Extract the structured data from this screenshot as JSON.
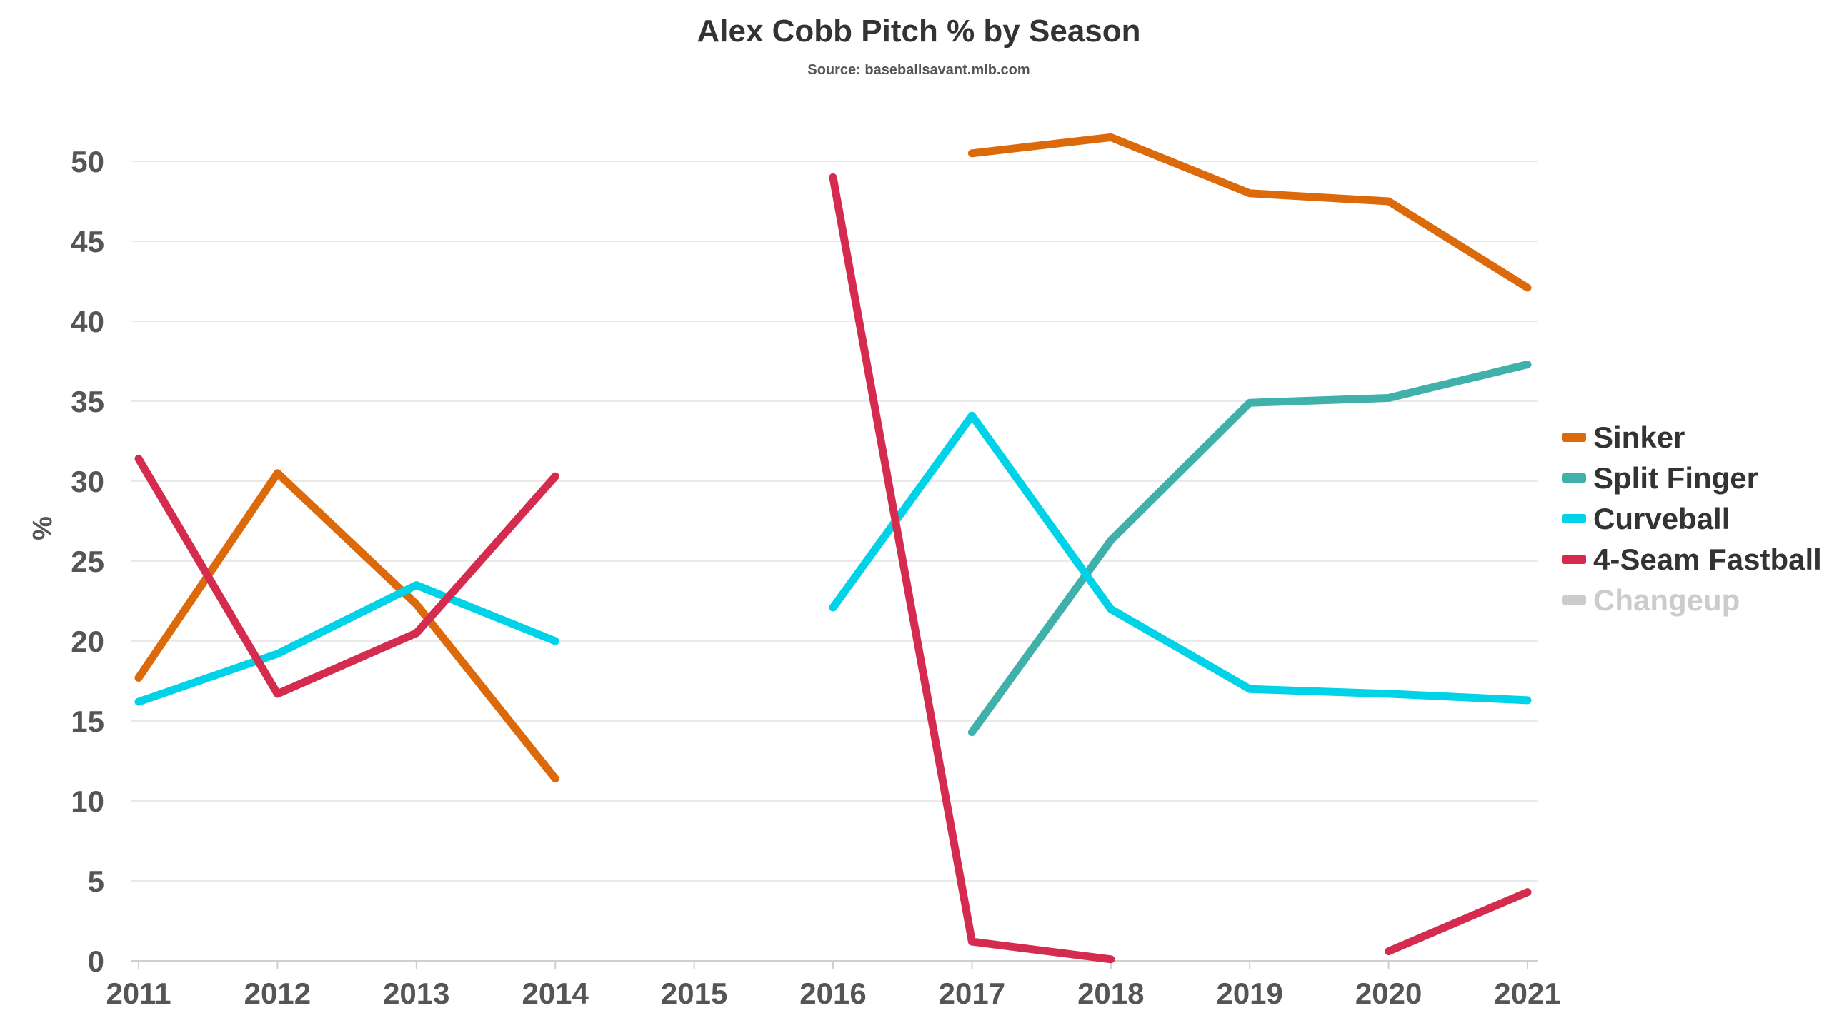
{
  "chart_data": {
    "type": "line",
    "title": "Alex Cobb Pitch % by Season",
    "subtitle": "Source: baseballsavant.mlb.com",
    "xlabel": "",
    "ylabel": "%",
    "x": [
      2011,
      2012,
      2013,
      2014,
      2015,
      2016,
      2017,
      2018,
      2019,
      2020,
      2021
    ],
    "x_ticks": [
      "2011",
      "2012",
      "2013",
      "2014",
      "2015",
      "2016",
      "2017",
      "2018",
      "2019",
      "2020",
      "2021"
    ],
    "ylim": [
      0,
      50
    ],
    "y_ticks": [
      "0",
      "5",
      "10",
      "15",
      "20",
      "25",
      "30",
      "35",
      "40",
      "45",
      "50"
    ],
    "grid": true,
    "legend_position": "right",
    "series": [
      {
        "name": "Sinker",
        "color": "#dd6a0a",
        "values": [
          17.7,
          30.5,
          22.3,
          11.4,
          null,
          null,
          50.5,
          51.5,
          48.0,
          47.5,
          42.1
        ]
      },
      {
        "name": "Split Finger",
        "color": "#3fb0aa",
        "values": [
          null,
          null,
          null,
          null,
          null,
          null,
          14.3,
          26.3,
          34.9,
          35.2,
          37.3
        ]
      },
      {
        "name": "Curveball",
        "color": "#00d2e8",
        "values": [
          16.2,
          19.2,
          23.5,
          20.0,
          null,
          22.1,
          34.1,
          22.0,
          17.0,
          16.7,
          16.3
        ]
      },
      {
        "name": "4-Seam Fastball",
        "color": "#d42b4f",
        "values": [
          31.4,
          16.7,
          20.5,
          30.3,
          null,
          49.0,
          1.2,
          0.1,
          null,
          0.6,
          4.3
        ]
      },
      {
        "name": "Changeup",
        "color": "#cccccc",
        "values": [
          null,
          null,
          null,
          null,
          null,
          null,
          null,
          null,
          null,
          null,
          null
        ],
        "hidden": true
      }
    ]
  }
}
